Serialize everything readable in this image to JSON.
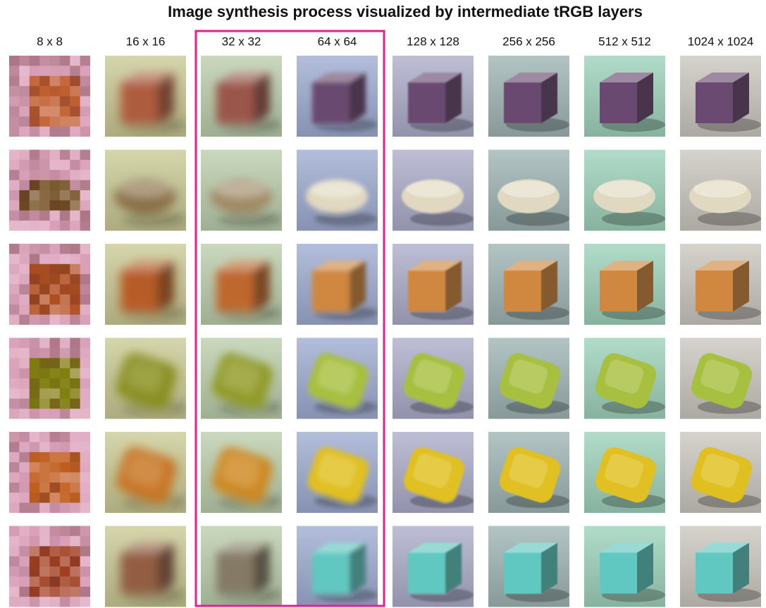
{
  "title": "Image synthesis process visualized by intermediate tRGB layers",
  "columns": [
    "8 x 8",
    "16 x 16",
    "32 x 32",
    "64 x 64",
    "128 x 128",
    "256 x 256",
    "512 x 512",
    "1024 x 1024"
  ]
}
